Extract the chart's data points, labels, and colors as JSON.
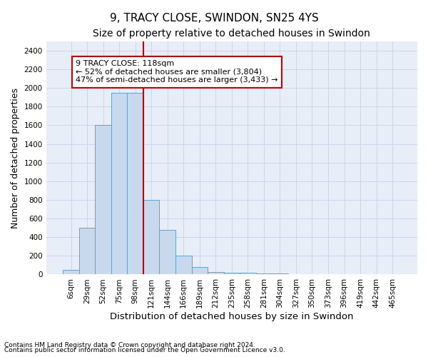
{
  "title": "9, TRACY CLOSE, SWINDON, SN25 4YS",
  "subtitle": "Size of property relative to detached houses in Swindon",
  "xlabel": "Distribution of detached houses by size in Swindon",
  "ylabel": "Number of detached properties",
  "footnote1": "Contains HM Land Registry data © Crown copyright and database right 2024.",
  "footnote2": "Contains public sector information licensed under the Open Government Licence v3.0.",
  "bar_color": "#c8d9ee",
  "bar_edge_color": "#6b9fc8",
  "grid_color": "#ccd6e8",
  "background_color": "#e8eef8",
  "annotation_box_color": "#cc0000",
  "vline_color": "#cc0000",
  "categories": [
    "6sqm",
    "29sqm",
    "52sqm",
    "75sqm",
    "98sqm",
    "121sqm",
    "144sqm",
    "166sqm",
    "189sqm",
    "212sqm",
    "235sqm",
    "258sqm",
    "281sqm",
    "304sqm",
    "327sqm",
    "350sqm",
    "373sqm",
    "396sqm",
    "419sqm",
    "442sqm",
    "465sqm"
  ],
  "values": [
    50,
    500,
    1600,
    1950,
    1950,
    800,
    480,
    200,
    80,
    30,
    20,
    15,
    10,
    8,
    5,
    3,
    2,
    2,
    5,
    2,
    2
  ],
  "ylim": [
    0,
    2500
  ],
  "yticks": [
    0,
    200,
    400,
    600,
    800,
    1000,
    1200,
    1400,
    1600,
    1800,
    2000,
    2200,
    2400
  ],
  "property_label": "9 TRACY CLOSE: 118sqm",
  "annotation_line1": "← 52% of detached houses are smaller (3,804)",
  "annotation_line2": "47% of semi-detached houses are larger (3,433) →",
  "vline_position": 4.5,
  "title_fontsize": 11,
  "subtitle_fontsize": 10,
  "tick_fontsize": 7.5,
  "ylabel_fontsize": 9,
  "xlabel_fontsize": 9.5,
  "footnote_fontsize": 6.5
}
